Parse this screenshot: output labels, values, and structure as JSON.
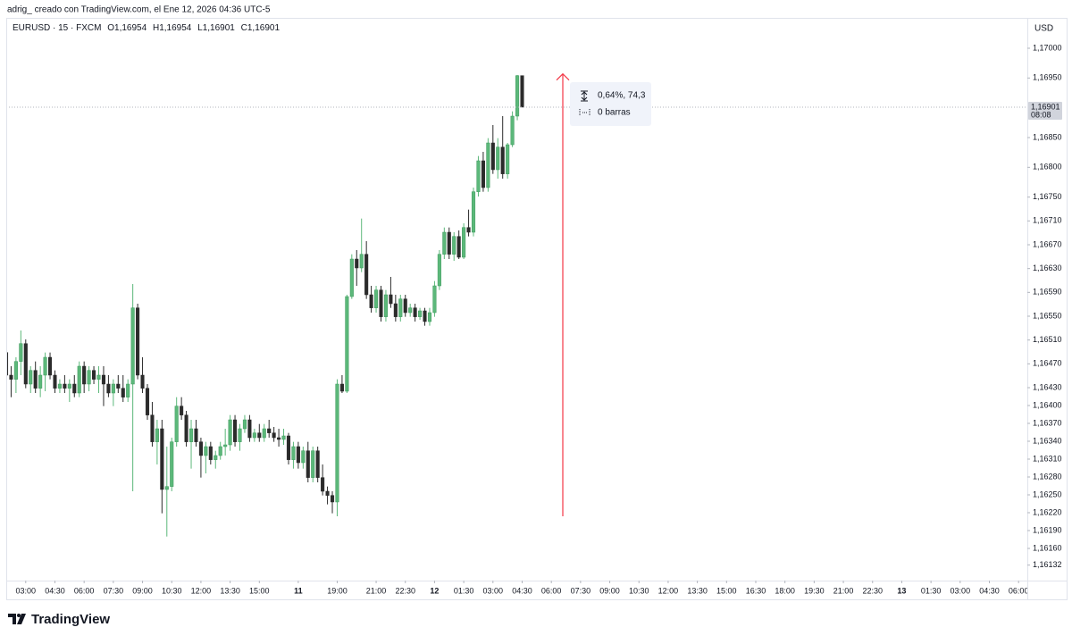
{
  "credit": "adrig_ creado con TradingView.com, el Ene 12, 2026 04:36 UTC-5",
  "logo": "TradingView",
  "chart_data": {
    "type": "candlestick",
    "symbol": "EURUSD · 15 · FXCM",
    "ohlc_legend": [
      {
        "key": "O",
        "value": "1,16954"
      },
      {
        "key": "H",
        "value": "1,16954"
      },
      {
        "key": "L",
        "value": "1,16901"
      },
      {
        "key": "C",
        "value": "1,16901"
      }
    ],
    "currency": "USD",
    "up_color": "#5cb87a",
    "down_color": "#2b2b2b",
    "grid": false,
    "open": [
      1.16489,
      1.16451,
      1.16444,
      1.16474,
      1.16504,
      1.16436,
      1.16459,
      1.16429,
      1.16451,
      1.16481,
      1.16451,
      1.16429,
      1.16436,
      1.16429,
      1.16436,
      1.16421,
      1.16466,
      1.16436,
      1.16459,
      1.16444,
      1.16451,
      1.16436,
      1.16421,
      1.16436,
      1.16429,
      1.16414,
      1.16436,
      1.16564,
      1.16451,
      1.16429,
      1.16384,
      1.16339,
      1.16361,
      1.16259,
      1.16264,
      1.16339,
      1.16399,
      1.16384,
      1.16339,
      1.16361,
      1.16339,
      1.16316,
      1.16331,
      1.16309,
      1.16316,
      1.16331,
      1.16334,
      1.16376,
      1.16339,
      1.16361,
      1.16376,
      1.16346,
      1.16354,
      1.16346,
      1.16361,
      1.16354,
      1.16346,
      1.16343,
      1.16349,
      1.16309,
      1.16331,
      1.16304,
      1.16324,
      1.16279,
      1.16324,
      1.16279,
      1.16256,
      1.16249,
      1.16238,
      1.16436,
      1.16424,
      1.16583,
      1.16646,
      1.16631,
      1.16654,
      1.16586,
      1.16564,
      1.16594,
      1.16549,
      1.16586,
      1.16571,
      1.16549,
      1.16579,
      1.16556,
      1.16564,
      1.16549,
      1.16559,
      1.16541,
      1.16556,
      1.16601,
      1.16654,
      1.16691,
      1.16654,
      1.16684,
      1.16649,
      1.16699,
      1.16691,
      1.16759,
      1.16811,
      1.16766,
      1.16841,
      1.16796,
      1.16834,
      1.16789,
      1.16838,
      1.16886,
      1.16954
    ],
    "high": [
      1.16496,
      1.16466,
      1.16481,
      1.16526,
      1.16511,
      1.16466,
      1.16474,
      1.16466,
      1.16489,
      1.16489,
      1.16459,
      1.16444,
      1.16451,
      1.16444,
      1.16451,
      1.16474,
      1.16474,
      1.16466,
      1.16466,
      1.16466,
      1.16466,
      1.16451,
      1.16444,
      1.16451,
      1.16451,
      1.16444,
      1.16604,
      1.16571,
      1.16481,
      1.16436,
      1.16406,
      1.16376,
      1.16376,
      1.16331,
      1.16346,
      1.16414,
      1.16414,
      1.16391,
      1.16376,
      1.16376,
      1.16346,
      1.16339,
      1.16339,
      1.16324,
      1.16339,
      1.16361,
      1.16384,
      1.16384,
      1.16369,
      1.16384,
      1.16384,
      1.16361,
      1.16369,
      1.16369,
      1.16376,
      1.16364,
      1.16361,
      1.16361,
      1.16354,
      1.16339,
      1.16339,
      1.16331,
      1.16339,
      1.16331,
      1.16331,
      1.16301,
      1.16264,
      1.16256,
      1.16444,
      1.16451,
      1.16586,
      1.16654,
      1.16661,
      1.16714,
      1.16676,
      1.16601,
      1.16601,
      1.16601,
      1.16594,
      1.16616,
      1.16586,
      1.16586,
      1.16586,
      1.16571,
      1.16571,
      1.16564,
      1.16564,
      1.16564,
      1.16609,
      1.16661,
      1.16699,
      1.16699,
      1.16691,
      1.16694,
      1.16706,
      1.16729,
      1.16766,
      1.16819,
      1.16826,
      1.16849,
      1.16871,
      1.16849,
      1.16886,
      1.16841,
      1.16894,
      1.16955,
      1.16954
    ],
    "low": [
      1.16444,
      1.16414,
      1.16421,
      1.16451,
      1.16429,
      1.16421,
      1.16421,
      1.16414,
      1.16424,
      1.16444,
      1.16421,
      1.16421,
      1.16421,
      1.16406,
      1.16414,
      1.16414,
      1.16421,
      1.16424,
      1.16436,
      1.16421,
      1.16399,
      1.16414,
      1.16399,
      1.16421,
      1.16406,
      1.16406,
      1.16256,
      1.16444,
      1.16421,
      1.16376,
      1.16331,
      1.16301,
      1.16219,
      1.1618,
      1.16256,
      1.16331,
      1.16376,
      1.16331,
      1.16294,
      1.16331,
      1.16279,
      1.16286,
      1.16301,
      1.16294,
      1.16309,
      1.16316,
      1.16324,
      1.16331,
      1.16324,
      1.16354,
      1.16339,
      1.16339,
      1.16339,
      1.16339,
      1.16346,
      1.16339,
      1.16331,
      1.16334,
      1.16301,
      1.16294,
      1.16294,
      1.16294,
      1.16271,
      1.16271,
      1.16271,
      1.16249,
      1.16234,
      1.16219,
      1.16214,
      1.16421,
      1.16421,
      1.16579,
      1.16601,
      1.16624,
      1.16579,
      1.16556,
      1.16556,
      1.16541,
      1.16541,
      1.16564,
      1.16541,
      1.16541,
      1.16549,
      1.16549,
      1.16541,
      1.16544,
      1.16534,
      1.16534,
      1.16549,
      1.16594,
      1.16646,
      1.16646,
      1.16643,
      1.16646,
      1.16646,
      1.16684,
      1.16684,
      1.16751,
      1.16759,
      1.16759,
      1.16789,
      1.16781,
      1.16781,
      1.16781,
      1.16834,
      1.16879,
      1.16901
    ],
    "close": [
      1.16451,
      1.16444,
      1.16474,
      1.16504,
      1.16436,
      1.16459,
      1.16429,
      1.16451,
      1.16481,
      1.16451,
      1.16429,
      1.16436,
      1.16429,
      1.16436,
      1.16421,
      1.16466,
      1.16436,
      1.16459,
      1.16444,
      1.16451,
      1.16436,
      1.16421,
      1.16436,
      1.16429,
      1.16414,
      1.16436,
      1.16564,
      1.16451,
      1.16429,
      1.16384,
      1.16339,
      1.16361,
      1.16259,
      1.16264,
      1.16339,
      1.16399,
      1.16384,
      1.16339,
      1.16361,
      1.16339,
      1.16316,
      1.16331,
      1.16309,
      1.16316,
      1.16331,
      1.16334,
      1.16376,
      1.16339,
      1.16361,
      1.16376,
      1.16346,
      1.16354,
      1.16346,
      1.16361,
      1.16354,
      1.16346,
      1.16343,
      1.16349,
      1.16309,
      1.16331,
      1.16304,
      1.16324,
      1.16279,
      1.16324,
      1.16279,
      1.16256,
      1.16249,
      1.16238,
      1.16436,
      1.16424,
      1.16583,
      1.16646,
      1.16631,
      1.16654,
      1.16586,
      1.16564,
      1.16594,
      1.16549,
      1.16586,
      1.16571,
      1.16549,
      1.16579,
      1.16556,
      1.16564,
      1.16549,
      1.16559,
      1.16541,
      1.16556,
      1.16601,
      1.16654,
      1.16691,
      1.16654,
      1.16684,
      1.16649,
      1.16699,
      1.16691,
      1.16759,
      1.16811,
      1.16766,
      1.16841,
      1.16796,
      1.16834,
      1.16789,
      1.16838,
      1.16886,
      1.16954,
      1.16901
    ],
    "xlim": [
      0,
      209.8
    ],
    "xticks": [
      {
        "value": 4,
        "label": "03:00"
      },
      {
        "value": 10,
        "label": "04:30"
      },
      {
        "value": 16,
        "label": "06:00"
      },
      {
        "value": 22,
        "label": "07:30"
      },
      {
        "value": 28,
        "label": "09:00"
      },
      {
        "value": 34,
        "label": "10:30"
      },
      {
        "value": 40,
        "label": "12:00"
      },
      {
        "value": 46,
        "label": "13:30"
      },
      {
        "value": 52,
        "label": "15:00"
      },
      {
        "value": 60,
        "label": "11"
      },
      {
        "value": 68,
        "label": "19:00"
      },
      {
        "value": 76,
        "label": "21:00"
      },
      {
        "value": 82,
        "label": "22:30"
      },
      {
        "value": 88,
        "label": "12"
      },
      {
        "value": 94,
        "label": "01:30"
      },
      {
        "value": 100,
        "label": "03:00"
      },
      {
        "value": 106,
        "label": "04:30"
      },
      {
        "value": 112,
        "label": "06:00"
      },
      {
        "value": 118,
        "label": "07:30"
      },
      {
        "value": 124,
        "label": "09:00"
      },
      {
        "value": 130,
        "label": "10:30"
      },
      {
        "value": 136,
        "label": "12:00"
      },
      {
        "value": 142,
        "label": "13:30"
      },
      {
        "value": 148,
        "label": "15:00"
      },
      {
        "value": 154,
        "label": "16:30"
      },
      {
        "value": 160,
        "label": "18:00"
      },
      {
        "value": 166,
        "label": "19:30"
      },
      {
        "value": 172,
        "label": "21:00"
      },
      {
        "value": 178,
        "label": "22:30"
      },
      {
        "value": 184,
        "label": "13"
      },
      {
        "value": 190,
        "label": "01:30"
      },
      {
        "value": 196,
        "label": "03:00"
      },
      {
        "value": 202,
        "label": "04:30"
      },
      {
        "value": 208,
        "label": "06:00"
      }
    ],
    "bold_xticks": [
      "11",
      "12",
      "13"
    ],
    "ylim": [
      1.16106,
      1.17051
    ],
    "yticks": [
      {
        "value": 1.17,
        "label": "1,17000"
      },
      {
        "value": 1.1695,
        "label": "1,16950"
      },
      {
        "value": 1.1685,
        "label": "1,16850"
      },
      {
        "value": 1.168,
        "label": "1,16800"
      },
      {
        "value": 1.1675,
        "label": "1,16750"
      },
      {
        "value": 1.1671,
        "label": "1,16710"
      },
      {
        "value": 1.1667,
        "label": "1,16670"
      },
      {
        "value": 1.1663,
        "label": "1,16630"
      },
      {
        "value": 1.1659,
        "label": "1,16590"
      },
      {
        "value": 1.1655,
        "label": "1,16550"
      },
      {
        "value": 1.1651,
        "label": "1,16510"
      },
      {
        "value": 1.1647,
        "label": "1,16470"
      },
      {
        "value": 1.1643,
        "label": "1,16430"
      },
      {
        "value": 1.164,
        "label": "1,16400"
      },
      {
        "value": 1.1637,
        "label": "1,16370"
      },
      {
        "value": 1.1634,
        "label": "1,16340"
      },
      {
        "value": 1.1631,
        "label": "1,16310"
      },
      {
        "value": 1.1628,
        "label": "1,16280"
      },
      {
        "value": 1.1625,
        "label": "1,16250"
      },
      {
        "value": 1.1622,
        "label": "1,16220"
      },
      {
        "value": 1.1619,
        "label": "1,16190"
      },
      {
        "value": 1.1616,
        "label": "1,16160"
      },
      {
        "value": 1.16132,
        "label": "1,16132"
      }
    ],
    "last_price": {
      "value": 1.16901,
      "label": "1,16901",
      "countdown": "08:08"
    },
    "measure": {
      "from": 1.16214,
      "to": 1.16957,
      "color": "#f23645",
      "label": "0,64%, 74,3",
      "bars_label": "0 barras"
    }
  }
}
